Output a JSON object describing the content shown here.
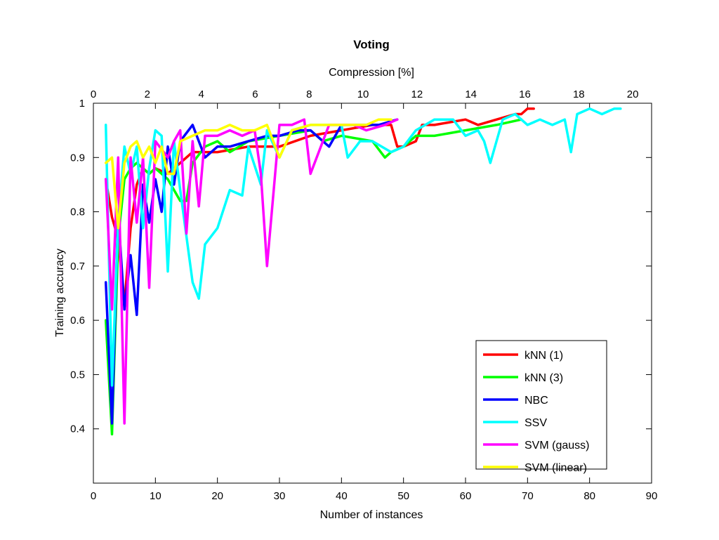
{
  "chart_data": {
    "type": "line",
    "title": "Voting",
    "xlabel": "Number of instances",
    "ylabel": "Training accuracy",
    "x2label": "Compression [%]",
    "xlim": [
      0,
      90
    ],
    "ylim": [
      0.3,
      1.0
    ],
    "x2lim": [
      0,
      20.7
    ],
    "xticks": [
      "0",
      "10",
      "20",
      "30",
      "40",
      "50",
      "60",
      "70",
      "80",
      "90"
    ],
    "yticks": [
      "0.4",
      "0.5",
      "0.6",
      "0.7",
      "0.8",
      "0.9",
      "1"
    ],
    "x2ticks": [
      "0",
      "2",
      "4",
      "6",
      "8",
      "10",
      "12",
      "14",
      "16",
      "18",
      "20"
    ],
    "grid": false,
    "legend_position": "bottom-right",
    "series": [
      {
        "name": "kNN (1)",
        "color": "#ff0000",
        "x": [
          2,
          3,
          4,
          5,
          6,
          7,
          8,
          9,
          10,
          12,
          14,
          16,
          18,
          20,
          25,
          30,
          35,
          40,
          45,
          48,
          49,
          50,
          52,
          53,
          55,
          60,
          62,
          65,
          68,
          69,
          70,
          71
        ],
        "y": [
          0.86,
          0.79,
          0.75,
          0.63,
          0.77,
          0.85,
          0.88,
          0.87,
          0.88,
          0.87,
          0.89,
          0.91,
          0.91,
          0.91,
          0.92,
          0.92,
          0.94,
          0.95,
          0.96,
          0.96,
          0.92,
          0.92,
          0.93,
          0.96,
          0.96,
          0.97,
          0.96,
          0.97,
          0.98,
          0.98,
          0.99,
          0.99
        ]
      },
      {
        "name": "kNN (3)",
        "color": "#00ff00",
        "x": [
          2,
          3,
          4,
          5,
          6,
          7,
          8,
          9,
          10,
          12,
          14,
          15,
          16,
          18,
          20,
          22,
          25,
          30,
          35,
          37,
          40,
          45,
          47,
          48,
          50,
          52,
          55,
          60,
          65,
          69
        ],
        "y": [
          0.6,
          0.39,
          0.75,
          0.86,
          0.88,
          0.89,
          0.88,
          0.87,
          0.88,
          0.86,
          0.82,
          0.82,
          0.89,
          0.92,
          0.93,
          0.91,
          0.93,
          0.94,
          0.95,
          0.93,
          0.94,
          0.93,
          0.9,
          0.91,
          0.92,
          0.94,
          0.94,
          0.95,
          0.96,
          0.97
        ]
      },
      {
        "name": "NBC",
        "color": "#0000ff",
        "x": [
          2,
          3,
          4,
          5,
          6,
          7,
          8,
          9,
          10,
          11,
          12,
          13,
          14,
          16,
          18,
          20,
          22,
          25,
          28,
          30,
          33,
          35,
          38,
          40,
          43,
          46,
          49
        ],
        "y": [
          0.67,
          0.41,
          0.8,
          0.62,
          0.72,
          0.61,
          0.85,
          0.78,
          0.86,
          0.8,
          0.92,
          0.85,
          0.93,
          0.96,
          0.9,
          0.92,
          0.92,
          0.93,
          0.94,
          0.94,
          0.95,
          0.95,
          0.92,
          0.96,
          0.96,
          0.96,
          0.97
        ]
      },
      {
        "name": "SSV",
        "color": "#00ffff",
        "x": [
          2,
          3,
          4,
          5,
          6,
          7,
          8,
          9,
          10,
          11,
          12,
          13,
          14,
          16,
          17,
          18,
          20,
          22,
          24,
          25,
          27,
          28,
          30,
          32,
          35,
          38,
          40,
          41,
          43,
          45,
          48,
          50,
          52,
          55,
          58,
          60,
          62,
          63,
          64,
          66,
          68,
          70,
          72,
          74,
          76,
          77,
          78,
          80,
          82,
          84,
          85
        ],
        "y": [
          0.96,
          0.48,
          0.78,
          0.92,
          0.87,
          0.92,
          0.77,
          0.88,
          0.95,
          0.94,
          0.69,
          0.93,
          0.84,
          0.67,
          0.64,
          0.74,
          0.77,
          0.84,
          0.83,
          0.92,
          0.85,
          0.95,
          0.9,
          0.95,
          0.96,
          0.96,
          0.96,
          0.9,
          0.93,
          0.93,
          0.91,
          0.92,
          0.95,
          0.97,
          0.97,
          0.94,
          0.95,
          0.93,
          0.89,
          0.97,
          0.98,
          0.96,
          0.97,
          0.96,
          0.97,
          0.91,
          0.98,
          0.99,
          0.98,
          0.99,
          0.99
        ]
      },
      {
        "name": "SVM (gauss)",
        "color": "#ff00ff",
        "x": [
          2,
          3,
          4,
          5,
          6,
          7,
          8,
          9,
          10,
          12,
          13,
          14,
          15,
          16,
          17,
          18,
          20,
          22,
          24,
          26,
          27,
          28,
          30,
          32,
          34,
          35,
          38,
          40,
          42,
          44,
          47,
          49
        ],
        "y": [
          0.86,
          0.62,
          0.9,
          0.41,
          0.9,
          0.78,
          0.9,
          0.66,
          0.93,
          0.9,
          0.93,
          0.95,
          0.76,
          0.93,
          0.81,
          0.94,
          0.94,
          0.95,
          0.94,
          0.95,
          0.87,
          0.7,
          0.96,
          0.96,
          0.97,
          0.87,
          0.96,
          0.96,
          0.96,
          0.95,
          0.96,
          0.97
        ]
      },
      {
        "name": "SVM (linear)",
        "color": "#ffff00",
        "x": [
          2,
          3,
          4,
          5,
          6,
          7,
          8,
          9,
          10,
          11,
          12,
          13,
          14,
          16,
          18,
          20,
          22,
          24,
          26,
          28,
          30,
          32,
          35,
          38,
          40,
          42,
          44,
          46,
          48
        ],
        "y": [
          0.89,
          0.9,
          0.77,
          0.89,
          0.92,
          0.93,
          0.9,
          0.92,
          0.89,
          0.92,
          0.87,
          0.87,
          0.93,
          0.94,
          0.95,
          0.95,
          0.96,
          0.95,
          0.95,
          0.96,
          0.9,
          0.95,
          0.96,
          0.96,
          0.96,
          0.96,
          0.96,
          0.97,
          0.97
        ]
      }
    ]
  }
}
